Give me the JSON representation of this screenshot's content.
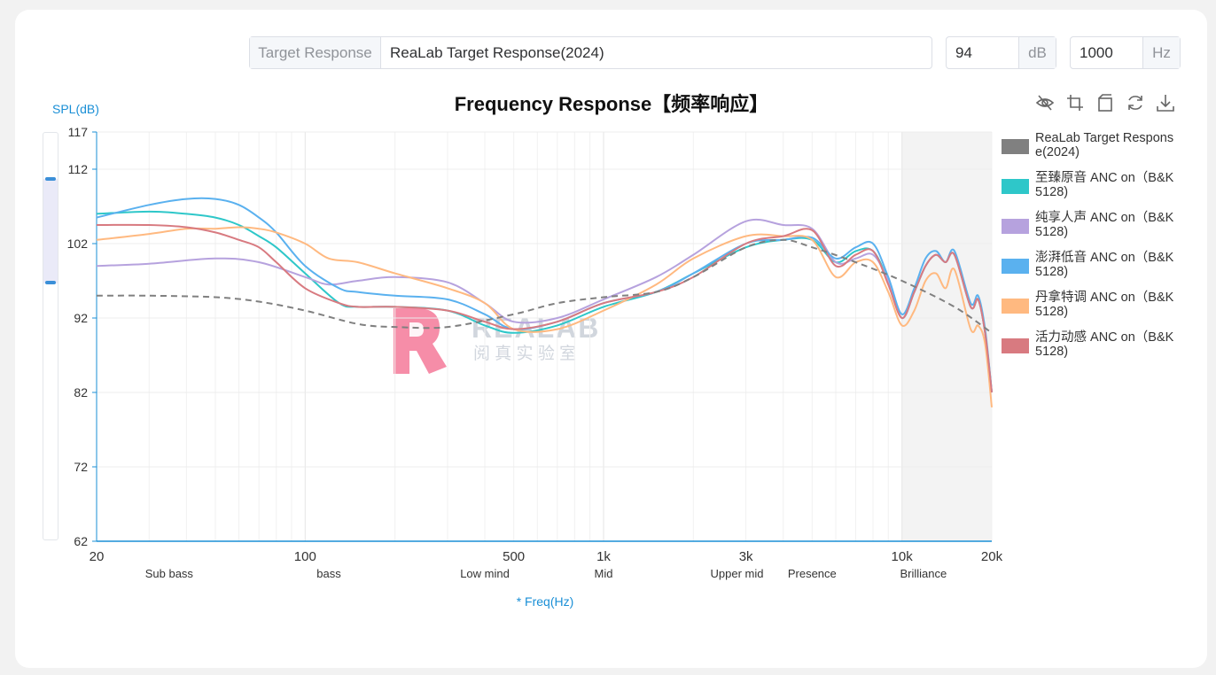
{
  "controls": {
    "target_label": "Target Response",
    "target_value": "ReaLab Target Response(2024)",
    "db_value": "94",
    "db_unit": "dB",
    "hz_value": "1000",
    "hz_unit": "Hz"
  },
  "watermark": {
    "main": "REALAB",
    "sub": "阅 真 实 验 室"
  },
  "toolbox": [
    "eye-off-icon",
    "crop-icon",
    "crop-reset-icon",
    "refresh-icon",
    "download-icon"
  ],
  "chart_data": {
    "type": "line",
    "title": "Frequency Response【频率响应】",
    "ylabel": "SPL(dB)",
    "xlabel": "* Freq(Hz)",
    "xscale": "log",
    "xlim": [
      20,
      20000
    ],
    "ylim": [
      62,
      117
    ],
    "yticks": [
      62,
      72,
      82,
      92,
      102,
      112,
      117
    ],
    "xticks": [
      {
        "v": 20,
        "label": "20"
      },
      {
        "v": 100,
        "label": "100"
      },
      {
        "v": 500,
        "label": "500"
      },
      {
        "v": 1000,
        "label": "1k"
      },
      {
        "v": 3000,
        "label": "3k"
      },
      {
        "v": 10000,
        "label": "10k"
      },
      {
        "v": 20000,
        "label": "20k"
      }
    ],
    "bands": [
      {
        "v": 35,
        "label": "Sub bass"
      },
      {
        "v": 120,
        "label": "bass"
      },
      {
        "v": 400,
        "label": "Low mind"
      },
      {
        "v": 1000,
        "label": "Mid"
      },
      {
        "v": 2800,
        "label": "Upper mid"
      },
      {
        "v": 5000,
        "label": "Presence"
      },
      {
        "v": 11800,
        "label": "Brilliance"
      }
    ],
    "shaded_region": [
      10000,
      20000
    ],
    "grid": true,
    "legend_position": "right",
    "series": [
      {
        "name": "ReaLab Target Response(2024)",
        "color": "#808080",
        "dashed": true,
        "x": [
          20,
          30,
          50,
          70,
          100,
          150,
          200,
          300,
          500,
          700,
          1000,
          1500,
          2000,
          3000,
          4000,
          5000,
          7000,
          10000,
          15000,
          20000
        ],
        "y": [
          95,
          95,
          94.8,
          94.2,
          93,
          91.2,
          90.8,
          90.8,
          92.5,
          94,
          94.8,
          95.5,
          97.5,
          101.5,
          102.5,
          101.5,
          99.5,
          97,
          93.5,
          90
        ]
      },
      {
        "name": "至臻原音 ANC on（B&K 5128)",
        "color": "#2ec7c9",
        "x": [
          20,
          30,
          40,
          50,
          60,
          70,
          80,
          100,
          130,
          150,
          200,
          300,
          400,
          500,
          700,
          1000,
          1500,
          2000,
          3000,
          4000,
          5000,
          6000,
          7000,
          8000,
          9000,
          10000,
          11000,
          12000,
          13000,
          14000,
          15000,
          17000,
          18000,
          19000,
          20000
        ],
        "y": [
          106,
          106.3,
          106,
          105.5,
          104.5,
          103,
          101.5,
          98,
          94,
          93.5,
          93.5,
          93,
          91,
          90,
          91,
          93.5,
          95.5,
          98,
          101.5,
          102.5,
          102.5,
          99.5,
          101,
          101,
          97,
          92,
          95.5,
          99,
          100.5,
          99.5,
          100.5,
          93.5,
          94.5,
          90,
          82
        ]
      },
      {
        "name": "纯享人声 ANC on（B&K 5128)",
        "color": "#b6a2de",
        "x": [
          20,
          30,
          50,
          70,
          100,
          120,
          150,
          200,
          300,
          400,
          500,
          700,
          1000,
          1500,
          2000,
          3000,
          4000,
          5000,
          6000,
          7000,
          8000,
          9000,
          10000,
          11000,
          12000,
          13000,
          14000,
          15000,
          17000,
          18000,
          19000,
          20000
        ],
        "y": [
          99,
          99.3,
          100,
          99.5,
          97.5,
          96.5,
          97,
          97.5,
          96.8,
          94,
          91.5,
          92,
          94.5,
          97.5,
          100.5,
          105,
          104.5,
          104,
          99.5,
          100,
          100.5,
          97,
          92,
          95.5,
          99,
          100.5,
          99.5,
          100.5,
          93.5,
          94.5,
          90,
          82
        ]
      },
      {
        "name": "澎湃低音 ANC on（B&K 5128)",
        "color": "#5ab1ef",
        "x": [
          20,
          30,
          40,
          50,
          60,
          70,
          80,
          100,
          130,
          150,
          200,
          300,
          400,
          500,
          700,
          1000,
          1500,
          2000,
          3000,
          4000,
          5000,
          6000,
          7000,
          8000,
          9000,
          10000,
          11000,
          12000,
          13000,
          14000,
          15000,
          17000,
          18000,
          19000,
          20000
        ],
        "y": [
          105.5,
          107.2,
          108,
          108,
          107.2,
          105.5,
          103.5,
          99,
          96,
          95.5,
          95,
          94.5,
          92.5,
          90.5,
          91.5,
          94,
          95.5,
          98,
          102,
          102.5,
          102.8,
          100,
          101.5,
          102,
          97.5,
          92.5,
          96,
          100,
          101,
          99.5,
          101,
          94,
          95,
          90.5,
          82
        ]
      },
      {
        "name": "丹拿特调 ANC on（B&K 5128)",
        "color": "#ffb980",
        "x": [
          20,
          30,
          40,
          50,
          60,
          70,
          80,
          100,
          120,
          150,
          200,
          300,
          400,
          500,
          700,
          1000,
          1500,
          2000,
          3000,
          4000,
          5000,
          6000,
          7000,
          8000,
          9000,
          10000,
          11000,
          12000,
          13000,
          14000,
          15000,
          17000,
          18000,
          19000,
          20000
        ],
        "y": [
          102.5,
          103.3,
          104,
          104,
          104.2,
          104,
          103.5,
          102,
          100,
          99.5,
          98,
          96,
          94,
          90.5,
          90.5,
          93,
          96.5,
          100,
          103,
          103,
          102.5,
          97.5,
          99.5,
          99.5,
          95.5,
          91,
          93,
          97,
          98,
          96,
          98.5,
          90.5,
          91,
          88.5,
          80
        ]
      },
      {
        "name": "活力动感 ANC on（B&K 5128)",
        "color": "#d87a80",
        "x": [
          20,
          30,
          40,
          50,
          60,
          70,
          80,
          100,
          130,
          150,
          200,
          300,
          400,
          500,
          700,
          1000,
          1500,
          2000,
          3000,
          4000,
          5000,
          6000,
          7000,
          8000,
          9000,
          10000,
          11000,
          12000,
          13000,
          14000,
          15000,
          17000,
          18000,
          19000,
          20000
        ],
        "y": [
          104.5,
          104.5,
          104.2,
          103.5,
          102.5,
          101.5,
          99.5,
          96,
          94,
          93.5,
          93.5,
          93,
          91.5,
          90.5,
          91.5,
          94,
          95.5,
          97.5,
          102,
          103,
          103.8,
          99,
          100.5,
          101,
          96.5,
          92,
          95.5,
          99,
          100.5,
          99.5,
          100.5,
          93.5,
          94.5,
          90,
          82
        ]
      }
    ]
  }
}
